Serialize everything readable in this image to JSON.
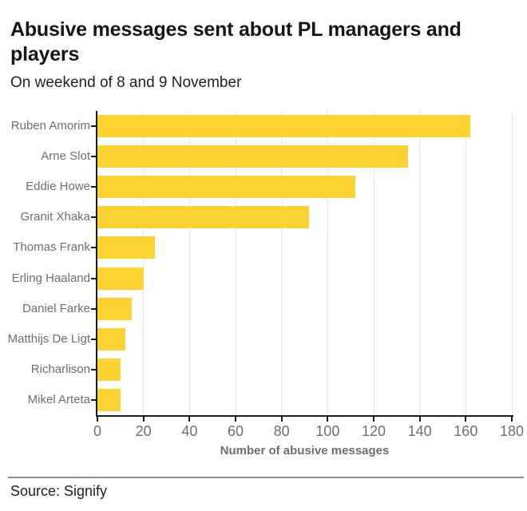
{
  "header": {
    "title": "Abusive messages sent about PL managers and players",
    "subtitle": "On weekend of 8 and 9 November"
  },
  "chart_data": {
    "type": "bar",
    "orientation": "horizontal",
    "title": "Abusive messages sent about PL managers and players",
    "subtitle": "On weekend of 8 and 9 November",
    "categories": [
      "Ruben Amorim",
      "Arne Slot",
      "Eddie Howe",
      "Granit Xhaka",
      "Thomas Frank",
      "Erling Haaland",
      "Daniel Farke",
      "Matthijs De Ligt",
      "Richarlison",
      "Mikel Arteta"
    ],
    "values": [
      162,
      135,
      112,
      92,
      25,
      20,
      15,
      12,
      10,
      10
    ],
    "xlabel": "Number of abusive messages",
    "ylabel": "",
    "xlim": [
      0,
      180
    ],
    "xticks": [
      0,
      20,
      40,
      60,
      80,
      100,
      120,
      140,
      160,
      180
    ],
    "grid": "vertical-gridlines",
    "legend": false
  },
  "footer": {
    "source": "Source: Signify"
  },
  "colors": {
    "bar": "#FCD330",
    "title_text": "#161616",
    "subtitle_text": "#222222",
    "label_text": "#6E6E73",
    "axis": "#1A1A1A",
    "gridline": "#E8E8E8",
    "divider": "#8F8F8F",
    "source_text": "#222222"
  }
}
